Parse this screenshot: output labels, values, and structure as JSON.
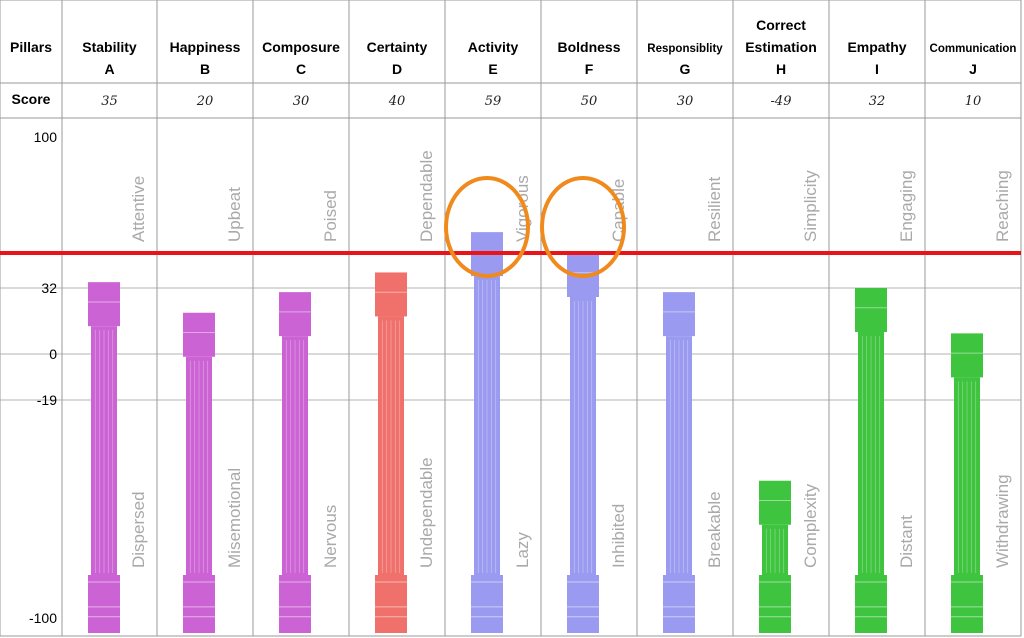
{
  "header": {
    "pillars_label": "Pillars",
    "score_label": "Score"
  },
  "chart_data": {
    "type": "bar",
    "ylim": [
      -100,
      100
    ],
    "yticks": [
      100,
      32,
      0,
      -19,
      -100
    ],
    "threshold": 50,
    "threshold_color": "#e8141a",
    "highlight_color": "#f08a1c",
    "highlighted": [
      "E",
      "F"
    ],
    "categories": [
      {
        "name": "Stability",
        "letter": "A",
        "score_label": "35",
        "value": 35,
        "color": "#cc63d4",
        "upper": "Attentive",
        "lower": "Dispersed"
      },
      {
        "name": "Happiness",
        "letter": "B",
        "score_label": "20",
        "value": 20,
        "color": "#cc63d4",
        "upper": "Upbeat",
        "lower": "Misemotional"
      },
      {
        "name": "Composure",
        "letter": "C",
        "score_label": "30",
        "value": 30,
        "color": "#cc63d4",
        "upper": "Poised",
        "lower": "Nervous"
      },
      {
        "name": "Certainty",
        "letter": "D",
        "score_label": "40",
        "value": 40,
        "color": "#f0716b",
        "upper": "Dependable",
        "lower": "Undependable"
      },
      {
        "name": "Activity",
        "letter": "E",
        "score_label": "59",
        "value": 59,
        "color": "#9a9af0",
        "upper": "Vigorous",
        "lower": "Lazy"
      },
      {
        "name": "Boldness",
        "letter": "F",
        "score_label": "50",
        "value": 50,
        "color": "#9a9af0",
        "upper": "Capable",
        "lower": "Inhibited"
      },
      {
        "name": "Responsiblity",
        "letter": "G",
        "score_label": "30",
        "value": 30,
        "color": "#9a9af0",
        "upper": "Resilient",
        "lower": "Breakable"
      },
      {
        "name": "Correct Estimation",
        "letter": "H",
        "score_label": "-49",
        "value": -49,
        "color": "#3ec43e",
        "upper": "Simplicity",
        "lower": "Complexity"
      },
      {
        "name": "Empathy",
        "letter": "I",
        "score_label": "32",
        "value": 32,
        "color": "#3ec43e",
        "upper": "Engaging",
        "lower": "Distant"
      },
      {
        "name": "Communication",
        "letter": "J",
        "score_label": "10",
        "value": 10,
        "color": "#3ec43e",
        "upper": "Reaching",
        "lower": "Withdrawing"
      }
    ]
  }
}
